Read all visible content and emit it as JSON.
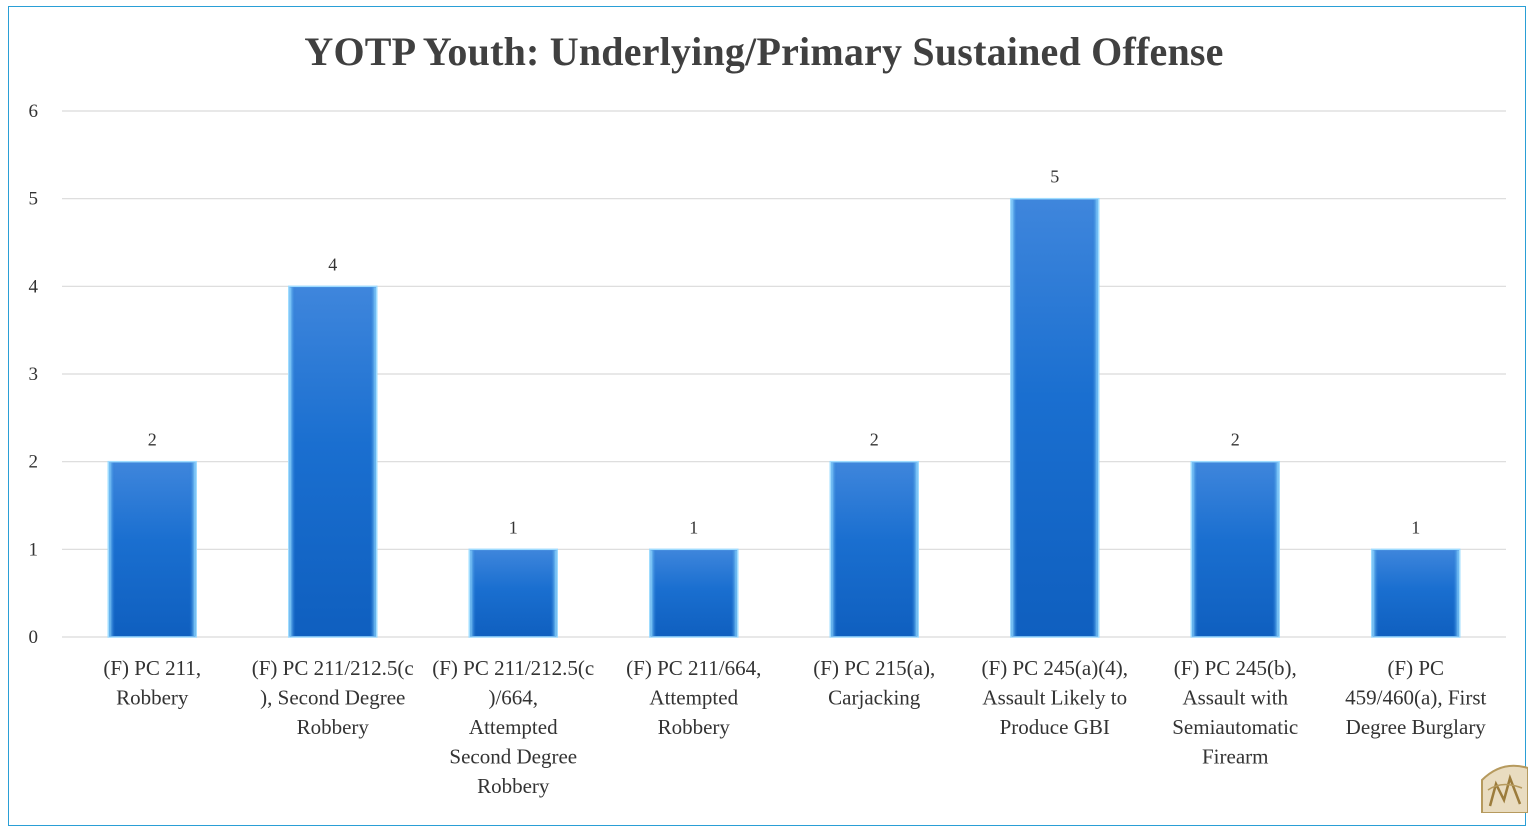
{
  "chart_data": {
    "type": "bar",
    "title": "YOTP Youth: Underlying/Primary Sustained Offense",
    "xlabel": "",
    "ylabel": "",
    "ylim": [
      0,
      6
    ],
    "yticks": [
      0,
      1,
      2,
      3,
      4,
      5,
      6
    ],
    "grid": true,
    "legend": "none",
    "categories": [
      [
        "(F) PC 211,",
        "Robbery"
      ],
      [
        "(F) PC 211/212.5(c",
        "), Second Degree",
        "Robbery"
      ],
      [
        "(F) PC 211/212.5(c",
        ")/664,",
        "Attempted",
        "Second Degree",
        "Robbery"
      ],
      [
        "(F) PC 211/664,",
        "Attempted",
        "Robbery"
      ],
      [
        "(F) PC 215(a),",
        "Carjacking"
      ],
      [
        "(F) PC 245(a)(4),",
        "Assault Likely to",
        "Produce GBI"
      ],
      [
        "(F) PC 245(b),",
        "Assault with",
        "Semiautomatic",
        "Firearm"
      ],
      [
        "(F) PC",
        "459/460(a), First",
        "Degree Burglary"
      ]
    ],
    "values": [
      2,
      4,
      1,
      1,
      2,
      5,
      2,
      1
    ],
    "bar_color": "#1a6fd0",
    "grid_color": "#d9d9d9"
  }
}
